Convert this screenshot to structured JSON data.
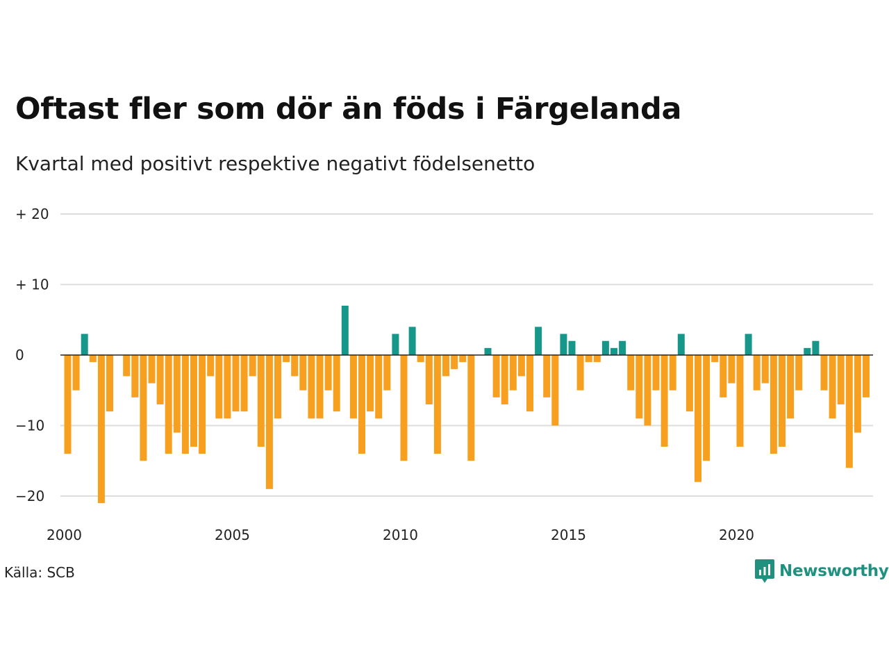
{
  "title": "Oftast fler som dör än föds i Färgelanda",
  "subtitle": "Kvartal med positivt respektive negativt födelsenetto",
  "source": "Källa: SCB",
  "logo_text": "Newsworthy",
  "colors": {
    "positive": "#17978a",
    "negative": "#f7a01f",
    "grid": "#dddddd",
    "zero_line": "#222222",
    "brand": "#20907f"
  },
  "chart_data": {
    "type": "bar",
    "title": "Oftast fler som dör än föds i Färgelanda",
    "subtitle": "Kvartal med positivt respektive negativt födelsenetto",
    "xlabel": "",
    "ylabel": "",
    "ylim": [
      -22,
      20
    ],
    "yticks": [
      {
        "value": 20,
        "label": "+ 20"
      },
      {
        "value": 10,
        "label": "+ 10"
      },
      {
        "value": 0,
        "label": "0"
      },
      {
        "value": -10,
        "label": "−10"
      },
      {
        "value": -20,
        "label": "−20"
      }
    ],
    "xticks": [
      2000,
      2005,
      2010,
      2015,
      2020
    ],
    "grid": true,
    "legend": "none",
    "start_year": 2000,
    "values": [
      -14,
      -5,
      3,
      -1,
      -21,
      -8,
      0,
      -3,
      -6,
      -15,
      -4,
      -7,
      -14,
      -11,
      -14,
      -13,
      -14,
      -3,
      -9,
      -9,
      -8,
      -8,
      -3,
      -13,
      -19,
      -9,
      -1,
      -3,
      -5,
      -9,
      -9,
      -5,
      -8,
      7,
      -9,
      -14,
      -8,
      -9,
      -5,
      3,
      -15,
      4,
      -1,
      -7,
      -14,
      -3,
      -2,
      -1,
      -15,
      0,
      1,
      -6,
      -7,
      -5,
      -3,
      -8,
      4,
      -6,
      -10,
      3,
      2,
      -5,
      -1,
      -1,
      2,
      1,
      2,
      -5,
      -9,
      -10,
      -5,
      -13,
      -5,
      3,
      -8,
      -18,
      -15,
      -1,
      -6,
      -4,
      -13,
      3,
      -5,
      -4,
      -14,
      -13,
      -9,
      -5,
      1,
      2,
      -5,
      -9,
      -7,
      -16,
      -11,
      -6
    ]
  }
}
